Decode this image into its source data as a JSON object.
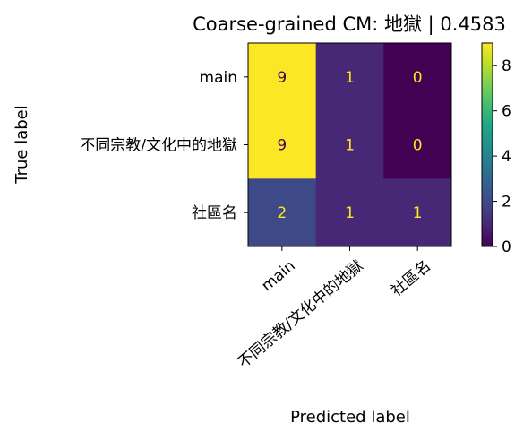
{
  "chart_data": {
    "type": "heatmap",
    "title": "Coarse-grained CM: 地獄 | 0.4583",
    "xlabel": "Predicted label",
    "ylabel": "True label",
    "row_labels": [
      "main",
      "不同宗教/文化中的地獄",
      "社區名"
    ],
    "col_labels": [
      "main",
      "不同宗教/文化中的地獄",
      "社區名"
    ],
    "values": [
      [
        9,
        1,
        0
      ],
      [
        9,
        1,
        0
      ],
      [
        2,
        1,
        1
      ]
    ],
    "colormap": "viridis",
    "vmin": 0,
    "vmax": 9,
    "colorbar_ticks": [
      0,
      2,
      4,
      6,
      8
    ],
    "text_color_dark_bg": "#fde725",
    "text_color_light_bg": "#440154"
  }
}
